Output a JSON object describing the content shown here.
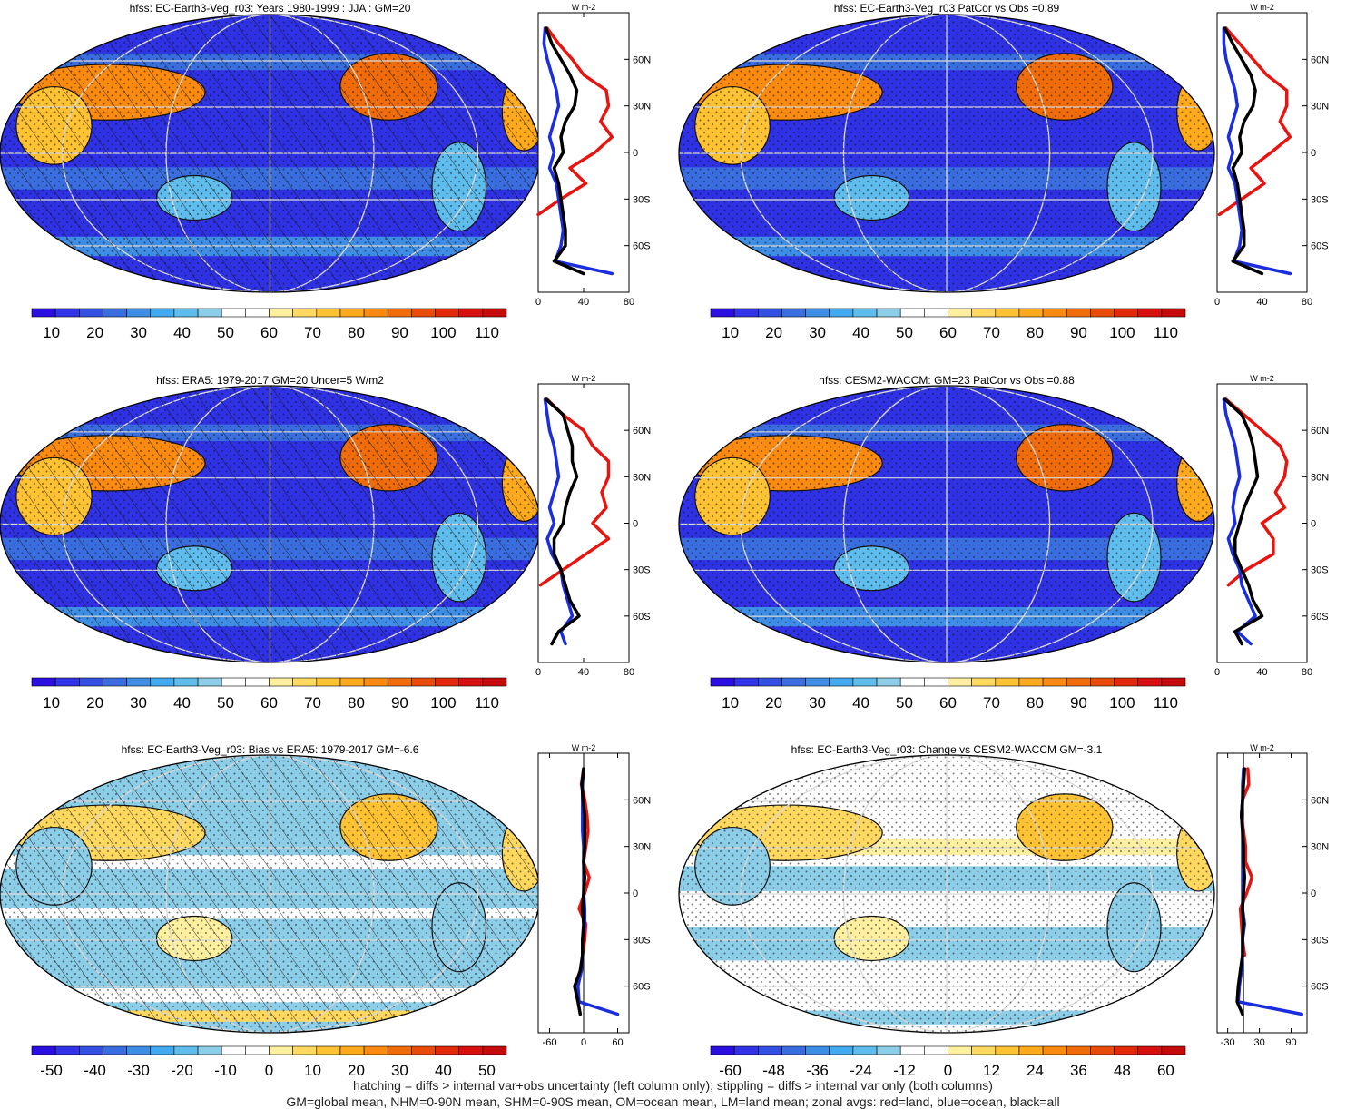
{
  "footer": {
    "line1": "hatching = diffs > internal var+obs uncertainty (left column only); stippling = diffs > internal var only (both columns)",
    "line2": "GM=global mean, NHM=0-90N mean, SHM=0-90S mean, OM=ocean mean, LM=land mean; zonal avgs: red=land, blue=ocean, black=all"
  },
  "colors": {
    "land": "#e8140f",
    "ocean": "#1a2ee0",
    "all": "#000000",
    "graticule": "#d8d8d8"
  },
  "chart_data": [
    {
      "type": "heatmap",
      "title": "hfss: EC-Earth3-Veg_r03: Years 1980-1999 : JJA : GM=20",
      "kind": "abs",
      "hatched": true,
      "colorbar_labels": [
        "10",
        "20",
        "30",
        "40",
        "50",
        "60",
        "70",
        "80",
        "90",
        "100",
        "110"
      ],
      "zonal": {
        "unit": "W m-2",
        "xlim": [
          0,
          80
        ],
        "xticks": [
          "0",
          "40",
          "80"
        ],
        "ylim": [
          -90,
          90
        ],
        "yticks": [
          "60N",
          "30N",
          "0",
          "30S",
          "60S"
        ],
        "lat": [
          80,
          70,
          60,
          50,
          40,
          30,
          20,
          10,
          0,
          -10,
          -20,
          -30,
          -40,
          -50,
          -60,
          -70,
          -78
        ],
        "land": [
          8,
          18,
          30,
          40,
          60,
          62,
          55,
          65,
          50,
          28,
          42,
          20,
          0,
          null,
          null,
          8,
          null
        ],
        "ocean": [
          6,
          5,
          8,
          12,
          16,
          18,
          14,
          10,
          14,
          10,
          16,
          18,
          20,
          22,
          20,
          15,
          65
        ],
        "all": [
          7,
          12,
          20,
          28,
          34,
          32,
          24,
          20,
          22,
          14,
          18,
          20,
          22,
          24,
          24,
          14,
          40
        ]
      }
    },
    {
      "type": "heatmap",
      "title": "hfss: EC-Earth3-Veg_r03 PatCor vs Obs =0.89",
      "kind": "abs",
      "hatched": false,
      "colorbar_labels": [
        "10",
        "20",
        "30",
        "40",
        "50",
        "60",
        "70",
        "80",
        "90",
        "100",
        "110"
      ],
      "zonal": {
        "unit": "W m-2",
        "xlim": [
          0,
          80
        ],
        "xticks": [
          "0",
          "40",
          "80"
        ],
        "ylim": [
          -90,
          90
        ],
        "yticks": [
          "60N",
          "30N",
          "0",
          "30S",
          "60S"
        ],
        "lat": [
          80,
          70,
          60,
          50,
          40,
          30,
          20,
          10,
          0,
          -10,
          -20,
          -30,
          -40,
          -50,
          -60,
          -70,
          -78
        ],
        "land": [
          8,
          20,
          32,
          44,
          62,
          62,
          56,
          65,
          48,
          30,
          42,
          22,
          2,
          null,
          null,
          10,
          null
        ],
        "ocean": [
          6,
          6,
          8,
          12,
          16,
          18,
          14,
          10,
          14,
          10,
          16,
          18,
          20,
          22,
          20,
          15,
          65
        ],
        "all": [
          7,
          14,
          22,
          30,
          34,
          32,
          24,
          20,
          22,
          14,
          18,
          20,
          22,
          24,
          24,
          14,
          40
        ]
      }
    },
    {
      "type": "heatmap",
      "title": "hfss: ERA5: 1979-2017 GM=20 Uncer=5 W/m2",
      "kind": "abs",
      "hatched": true,
      "colorbar_labels": [
        "10",
        "20",
        "30",
        "40",
        "50",
        "60",
        "70",
        "80",
        "90",
        "100",
        "110"
      ],
      "zonal": {
        "unit": "W m-2",
        "xlim": [
          0,
          80
        ],
        "xticks": [
          "0",
          "40",
          "80"
        ],
        "ylim": [
          -90,
          90
        ],
        "yticks": [
          "60N",
          "30N",
          "0",
          "30S",
          "60S"
        ],
        "lat": [
          80,
          70,
          60,
          50,
          40,
          30,
          20,
          10,
          0,
          -10,
          -20,
          -30,
          -40,
          -50,
          -60,
          -70,
          -78
        ],
        "land": [
          8,
          22,
          40,
          48,
          62,
          62,
          56,
          60,
          48,
          62,
          42,
          22,
          2,
          null,
          null,
          10,
          null
        ],
        "ocean": [
          6,
          8,
          10,
          14,
          16,
          18,
          14,
          10,
          14,
          8,
          12,
          20,
          22,
          26,
          30,
          20,
          24
        ],
        "all": [
          7,
          22,
          26,
          30,
          30,
          34,
          28,
          24,
          22,
          14,
          14,
          20,
          24,
          28,
          36,
          18,
          12
        ]
      }
    },
    {
      "type": "heatmap",
      "title": "hfss: CESM2-WACCM: GM=23 PatCor vs Obs =0.88",
      "kind": "abs",
      "hatched": false,
      "colorbar_labels": [
        "10",
        "20",
        "30",
        "40",
        "50",
        "60",
        "70",
        "80",
        "90",
        "100",
        "110"
      ],
      "zonal": {
        "unit": "W m-2",
        "xlim": [
          0,
          80
        ],
        "xticks": [
          "0",
          "40",
          "80"
        ],
        "ylim": [
          -90,
          90
        ],
        "yticks": [
          "60N",
          "30N",
          "0",
          "30S",
          "60S"
        ],
        "lat": [
          80,
          70,
          60,
          50,
          40,
          30,
          20,
          10,
          0,
          -10,
          -20,
          -30,
          -40,
          -50,
          -60,
          -70,
          -78
        ],
        "land": [
          8,
          24,
          40,
          56,
          62,
          60,
          52,
          60,
          40,
          50,
          50,
          26,
          10,
          null,
          null,
          8,
          null
        ],
        "ocean": [
          6,
          8,
          12,
          16,
          18,
          20,
          16,
          14,
          16,
          10,
          14,
          20,
          22,
          28,
          34,
          18,
          30
        ],
        "all": [
          7,
          22,
          28,
          32,
          34,
          36,
          30,
          24,
          20,
          16,
          16,
          22,
          28,
          32,
          40,
          16,
          22
        ]
      }
    },
    {
      "type": "heatmap",
      "title": "hfss: EC-Earth3-Veg_r03: Bias vs ERA5: 1979-2017 GM=-6.6",
      "kind": "diff",
      "hatched": true,
      "colorbar_labels": [
        "-50",
        "-40",
        "-30",
        "-20",
        "-10",
        "0",
        "10",
        "20",
        "30",
        "40",
        "50"
      ],
      "zonal": {
        "unit": "W m-2",
        "xlim": [
          -80,
          80
        ],
        "xticks": [
          "-60",
          "0",
          "60"
        ],
        "ylim": [
          -90,
          90
        ],
        "yticks": [
          "60N",
          "30N",
          "0",
          "30S",
          "60S"
        ],
        "lat": [
          80,
          70,
          60,
          50,
          40,
          30,
          20,
          10,
          0,
          -10,
          -20,
          -30,
          -40,
          -50,
          -60,
          -70,
          -78
        ],
        "land": [
          0,
          -4,
          2,
          6,
          8,
          4,
          0,
          10,
          2,
          -8,
          4,
          2,
          -2,
          null,
          null,
          18,
          null
        ],
        "ocean": [
          0,
          -2,
          -2,
          -2,
          -2,
          0,
          0,
          0,
          0,
          2,
          2,
          -2,
          -2,
          -4,
          -10,
          -8,
          60
        ],
        "all": [
          0,
          -3,
          -1,
          2,
          2,
          2,
          0,
          2,
          0,
          -2,
          0,
          -2,
          -2,
          -6,
          -16,
          -10,
          -6
        ]
      }
    },
    {
      "type": "heatmap",
      "title": "hfss: EC-Earth3-Veg_r03: Change vs CESM2-WACCM GM=-3.1",
      "kind": "diff",
      "hatched": false,
      "colorbar_labels": [
        "-60",
        "-48",
        "-36",
        "-24",
        "-12",
        "0",
        "12",
        "24",
        "36",
        "48",
        "60"
      ],
      "zonal": {
        "unit": "W m-2",
        "xlim": [
          -50,
          120
        ],
        "xticks": [
          "-30",
          "30",
          "90"
        ],
        "ylim": [
          -90,
          90
        ],
        "yticks": [
          "60N",
          "30N",
          "0",
          "30S",
          "60S"
        ],
        "lat": [
          80,
          70,
          60,
          50,
          40,
          30,
          20,
          10,
          0,
          -10,
          -20,
          -30,
          -40,
          -50,
          -60,
          -70,
          -78
        ],
        "land": [
          8,
          10,
          -2,
          -4,
          0,
          4,
          4,
          16,
          6,
          -6,
          -4,
          -2,
          2,
          null,
          null,
          20,
          null
        ],
        "ocean": [
          0,
          -2,
          -2,
          -4,
          -2,
          -2,
          -2,
          -2,
          -2,
          -2,
          2,
          -2,
          -2,
          -4,
          -8,
          -10,
          110
        ],
        "all": [
          2,
          0,
          -2,
          -4,
          -2,
          0,
          0,
          2,
          0,
          -2,
          0,
          -2,
          -2,
          -6,
          -10,
          -12,
          -2
        ]
      }
    }
  ]
}
